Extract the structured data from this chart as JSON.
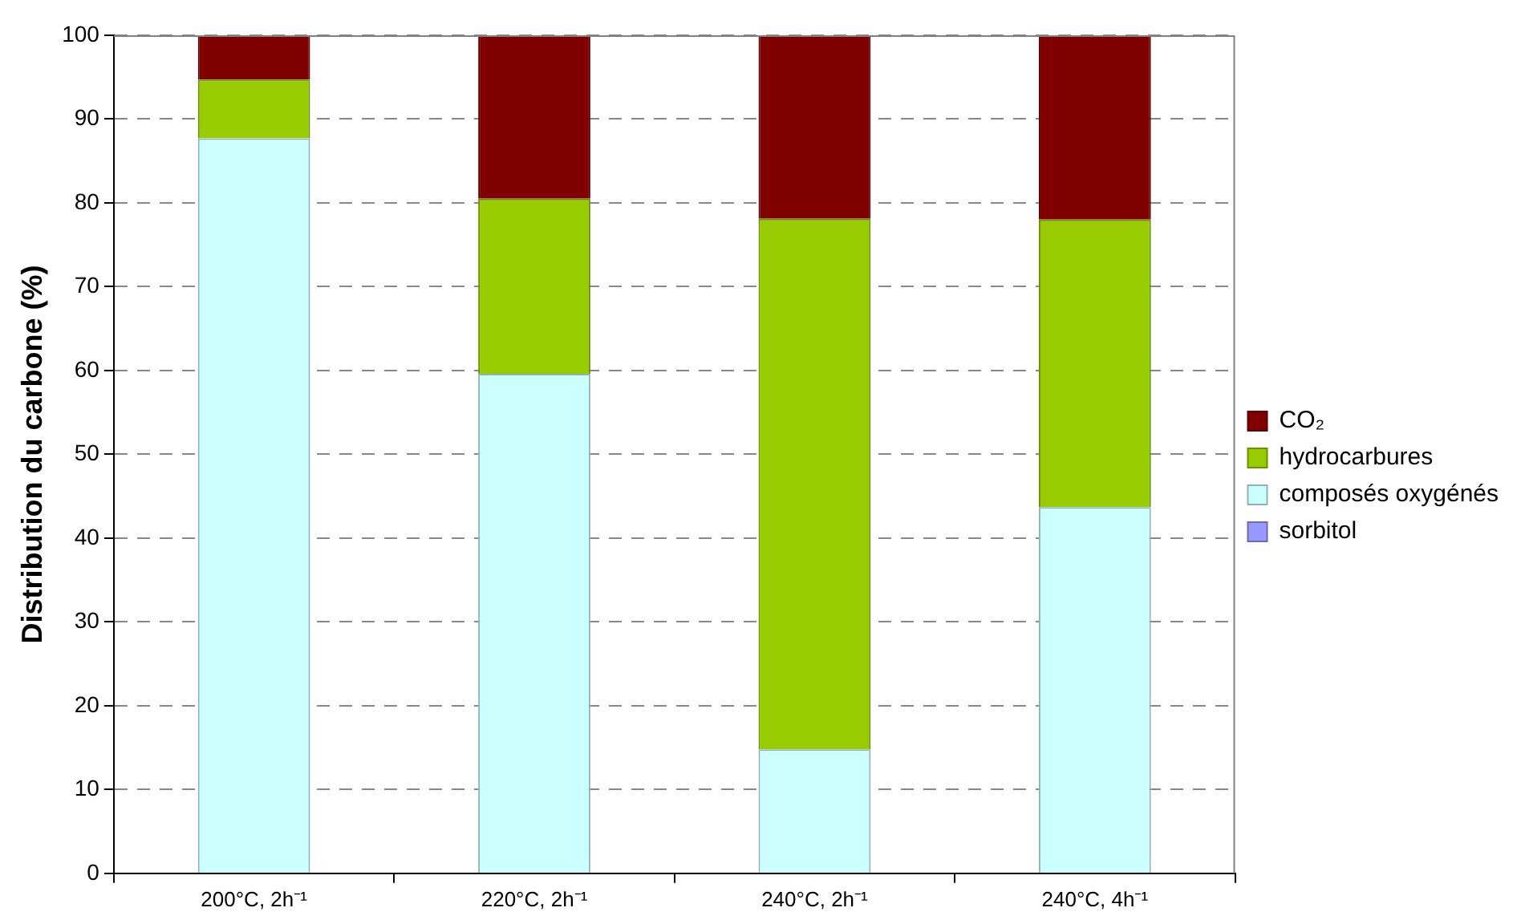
{
  "chart_data": {
    "type": "bar",
    "stacked": true,
    "ylabel": "Distribution du carbone (%)",
    "categories": [
      "200°C, 2h⁻¹",
      "220°C, 2h⁻¹",
      "240°C, 2h⁻¹",
      "240°C, 4h⁻¹"
    ],
    "series": [
      {
        "name": "sorbitol",
        "color": "#9999ff",
        "values": [
          0,
          0,
          0,
          0
        ]
      },
      {
        "name": "composés oxygénés",
        "color": "#ccffff",
        "values": [
          87.7,
          59.6,
          14.8,
          43.7
        ]
      },
      {
        "name": "hydrocarbures",
        "color": "#99cc00",
        "values": [
          7.0,
          20.9,
          63.3,
          34.3
        ]
      },
      {
        "name": "CO₂",
        "color": "#800000",
        "values": [
          5.3,
          19.5,
          21.9,
          22.0
        ]
      }
    ],
    "ylim": [
      0,
      100
    ],
    "yticks": [
      0,
      10,
      20,
      30,
      40,
      50,
      60,
      70,
      80,
      90,
      100
    ],
    "grid": "y",
    "legend": "right"
  }
}
